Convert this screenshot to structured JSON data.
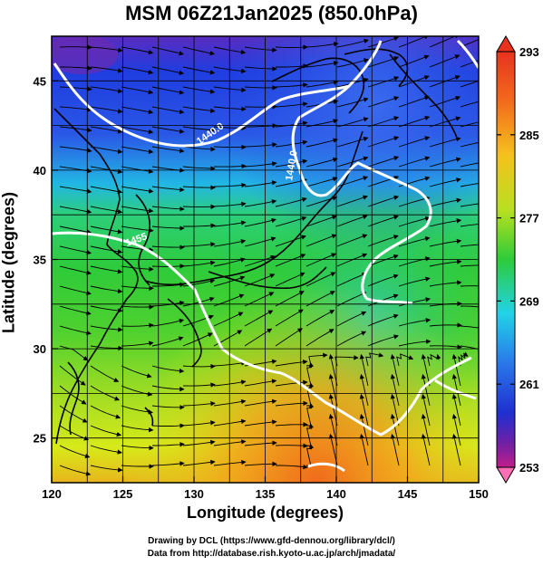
{
  "title": "MSM 06Z21Jan2025 (850.0hPa)",
  "axes": {
    "xlabel": "Longitude (degrees)",
    "ylabel": "Latitude  (degrees)",
    "xticks": [
      "120",
      "125",
      "130",
      "135",
      "140",
      "145",
      "150"
    ],
    "yticks": [
      "25",
      "30",
      "35",
      "40",
      "45"
    ],
    "xlim": [
      120,
      150
    ],
    "ylim": [
      22.5,
      47.5
    ]
  },
  "colorbar": {
    "labels": [
      "293",
      "285",
      "277",
      "269",
      "261",
      "253"
    ],
    "min": 253,
    "max": 293
  },
  "contour_labels": [
    "1440.0",
    "1440.0",
    "1455"
  ],
  "credits": {
    "line1": "Drawing by DCL (https://www.gfd-dennou.org/library/dcl/)",
    "line2": "Data from http://database.rish.kyoto-u.ac.jp/arch/jmadata/"
  },
  "colors": {
    "purple": "#7a1fa0",
    "blue": "#1f3de0",
    "cyan": "#21d3e8",
    "green": "#2ecb3a",
    "yellow": "#d7ea1a",
    "orange": "#f59a1c",
    "red": "#e8321e",
    "pink": "#ff6fb5"
  }
}
